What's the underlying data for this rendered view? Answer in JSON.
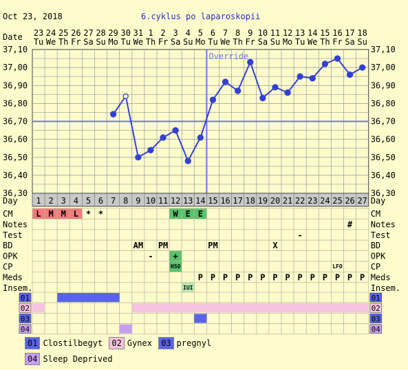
{
  "header": {
    "date": "Oct 23, 2018",
    "title": "6.cyklus po laparoskopii"
  },
  "row_labels": {
    "date": "Date",
    "day": "Day",
    "cm": "CM",
    "notes": "Notes",
    "test": "Test",
    "bd": "BD",
    "opk": "OPK",
    "cp": "CP",
    "meds": "Meds",
    "insem": "Insem."
  },
  "override_label": "Override",
  "chart_data": {
    "type": "line",
    "dates": [
      "23",
      "24",
      "25",
      "26",
      "27",
      "28",
      "29",
      "30",
      "31",
      "1",
      "2",
      "3",
      "4",
      "5",
      "6",
      "7",
      "8",
      "9",
      "10",
      "11",
      "12",
      "13",
      "14",
      "15",
      "16",
      "17",
      "18"
    ],
    "weekdays": [
      "Tu",
      "We",
      "Th",
      "Fr",
      "Sa",
      "Su",
      "Mo",
      "Tu",
      "We",
      "Th",
      "Fr",
      "Sa",
      "Su",
      "Mo",
      "Tu",
      "We",
      "Th",
      "Fr",
      "Sa",
      "Su",
      "Mo",
      "Tu",
      "We",
      "Th",
      "Fr",
      "Sa",
      "Su"
    ],
    "days": [
      1,
      2,
      3,
      4,
      5,
      6,
      7,
      8,
      9,
      10,
      11,
      12,
      13,
      14,
      15,
      16,
      17,
      18,
      19,
      20,
      21,
      22,
      23,
      24,
      25,
      26,
      27
    ],
    "temperatures": [
      null,
      null,
      null,
      null,
      null,
      null,
      36.74,
      36.84,
      36.5,
      36.54,
      36.61,
      36.65,
      36.48,
      36.61,
      36.82,
      36.92,
      36.87,
      37.03,
      36.83,
      36.89,
      36.86,
      36.95,
      36.94,
      37.02,
      37.05,
      36.96,
      37.0
    ],
    "open_point_day": 8,
    "y_ticks": [
      "37,10",
      "37,00",
      "36,90",
      "36,80",
      "36,70",
      "36,60",
      "36,50",
      "36,40",
      "36,30"
    ],
    "ylim": [
      36.3,
      37.1
    ],
    "coverline": 36.7,
    "ovulation_day": 14,
    "line_color": "#3340d6",
    "coverline_color": "#6b73f0",
    "grid": true
  },
  "rows": {
    "cm": [
      "L",
      "M",
      "M",
      "L",
      "*",
      "*",
      "",
      "",
      "",
      "",
      "",
      "W",
      "E",
      "E",
      "",
      "",
      "",
      "",
      "",
      "",
      "",
      "",
      "",
      "",
      "",
      "",
      ""
    ],
    "notes": [
      "",
      "",
      "",
      "",
      "",
      "",
      "",
      "",
      "",
      "",
      "",
      "",
      "",
      "",
      "",
      "",
      "",
      "",
      "",
      "",
      "",
      "",
      "",
      "",
      "",
      "#",
      ""
    ],
    "test": [
      "",
      "",
      "",
      "",
      "",
      "",
      "",
      "",
      "",
      "",
      "",
      "",
      "",
      "",
      "",
      "",
      "",
      "",
      "",
      "",
      "",
      "-",
      "",
      "",
      "",
      "",
      ""
    ],
    "bd": [
      "",
      "",
      "",
      "",
      "",
      "",
      "",
      "",
      "AM",
      "",
      "PM",
      "",
      "",
      "",
      "PM",
      "",
      "",
      "",
      "",
      "X",
      "",
      "",
      "",
      "",
      "",
      "",
      ""
    ],
    "opk": [
      "",
      "",
      "",
      "",
      "",
      "",
      "",
      "",
      "",
      "-",
      "",
      "+",
      "",
      "",
      "",
      "",
      "",
      "",
      "",
      "",
      "",
      "",
      "",
      "",
      "",
      "",
      ""
    ],
    "cp": [
      "",
      "",
      "",
      "",
      "",
      "",
      "",
      "",
      "",
      "",
      "",
      "HSO",
      "",
      "",
      "",
      "",
      "",
      "",
      "",
      "",
      "",
      "",
      "",
      "",
      "LFO",
      "",
      ""
    ],
    "meds": [
      "",
      "",
      "",
      "",
      "",
      "",
      "",
      "",
      "",
      "",
      "",
      "",
      "",
      "P",
      "P",
      "P",
      "P",
      "P",
      "P",
      "P",
      "P",
      "P",
      "P",
      "P",
      "P",
      "P",
      "P"
    ],
    "insem": [
      "",
      "",
      "",
      "",
      "",
      "",
      "",
      "",
      "",
      "",
      "",
      "",
      "IUI",
      "",
      "",
      "",
      "",
      "",
      "",
      "",
      "",
      "",
      "",
      "",
      "",
      "",
      ""
    ]
  },
  "med_rows": [
    {
      "code": "01",
      "color": "#5a63e8",
      "start": 3,
      "end": 7
    },
    {
      "code": "02",
      "color": "#f6c3e0",
      "start": 1,
      "end": 1
    },
    {
      "code": "02",
      "color": "#f6c3e0",
      "start": 9,
      "end": 27
    },
    {
      "code": "03",
      "color": "#5a63e8",
      "start": 14,
      "end": 14
    },
    {
      "code": "04",
      "color": "#c89ff0",
      "start": 8,
      "end": 8
    }
  ],
  "med_codes": [
    "01",
    "02",
    "03",
    "04"
  ],
  "legend": [
    {
      "code": "01",
      "name": "Clostilbegyt",
      "color": "#5a63e8"
    },
    {
      "code": "02",
      "name": "Gynex",
      "color": "#f6c3e0"
    },
    {
      "code": "03",
      "name": "pregnyl",
      "color": "#5a63e8"
    },
    {
      "code": "04",
      "name": "Sleep Deprived",
      "color": "#c89ff0"
    }
  ]
}
